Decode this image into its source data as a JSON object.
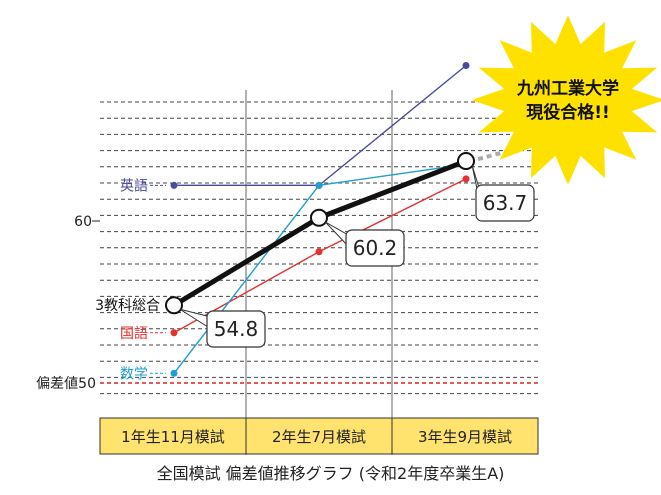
{
  "chart_data": {
    "type": "line",
    "categories": [
      "1年生11月模試",
      "2年生7月模試",
      "3年生9月模試"
    ],
    "ylim": [
      47,
      73
    ],
    "yticks": [
      {
        "value": 60,
        "label": "60"
      }
    ],
    "reference_line": {
      "value": 50,
      "label": "偏差値50",
      "color": "#dd2222"
    },
    "grid": "dashed-horizontal",
    "series": [
      {
        "name": "英語",
        "color": "#4a4a9e",
        "label_color": "#4a4a9e",
        "values": [
          62.2,
          62.2,
          69.6
        ],
        "marker": "dot",
        "show_label": true
      },
      {
        "name": "国語",
        "color": "#e53030",
        "label_color": "#e53030",
        "values": [
          53.1,
          58.1,
          62.6
        ],
        "marker": "dot",
        "show_label": true
      },
      {
        "name": "数学",
        "color": "#1e9fd0",
        "label_color": "#1e9fd0",
        "values": [
          50.6,
          62.2,
          63.5
        ],
        "marker": "dot",
        "show_label": true
      },
      {
        "name": "3教科総合",
        "color": "#111111",
        "label_color": "#111111",
        "values": [
          54.8,
          60.2,
          63.7
        ],
        "marker": "circle",
        "bold": true,
        "show_label": true,
        "data_labels": [
          "54.8",
          "60.2",
          "63.7"
        ]
      }
    ],
    "callout": {
      "line1": "九州工業大学",
      "line2": "現役合格!!",
      "fill": "#ffe100"
    },
    "caption": "全国模試 偏差値推移グラフ (令和2年度卒業生A)"
  }
}
